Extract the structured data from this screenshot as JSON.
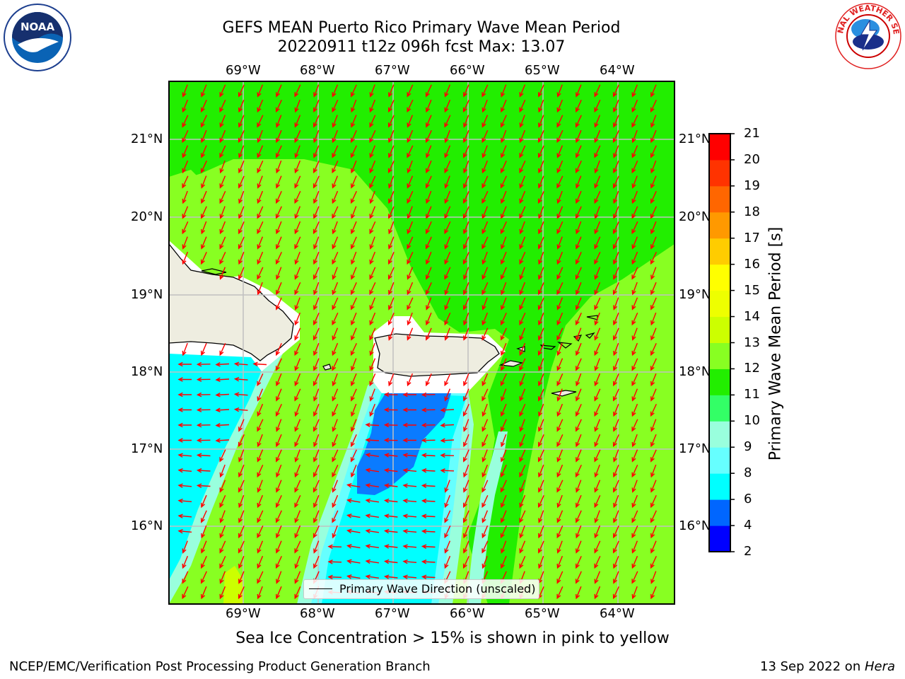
{
  "title": {
    "line1": "GEFS MEAN Puerto Rico Primary Wave Mean Period",
    "line2": "20220911 t12z 096h fcst   Max: 13.07"
  },
  "axes": {
    "longitude_labels": [
      "69°W",
      "68°W",
      "67°W",
      "66°W",
      "65°W",
      "64°W"
    ],
    "latitude_labels": [
      "21°N",
      "20°N",
      "19°N",
      "18°N",
      "17°N",
      "16°N"
    ]
  },
  "legend": {
    "label": "Primary Wave Direction (unscaled)"
  },
  "colorbar": {
    "label": "Primary Wave Mean Period [s]",
    "ticks": [
      "2",
      "4",
      "6",
      "8",
      "9",
      "10",
      "11",
      "12",
      "13",
      "14",
      "15",
      "16",
      "17",
      "18",
      "19",
      "20",
      "21"
    ],
    "colors": [
      "#0000ff",
      "#0066ff",
      "#00ffff",
      "#66ffff",
      "#99ffdd",
      "#33ff66",
      "#22ee00",
      "#88ff22",
      "#ccff00",
      "#eeff00",
      "#ffff00",
      "#ffcc00",
      "#ff9900",
      "#ff6600",
      "#ff3300",
      "#ff0000"
    ]
  },
  "caption": "Sea Ice Concentration > 15% is shown in pink to yellow",
  "footer": {
    "left": "NCEP/EMC/Verification Post Processing Product Generation Branch",
    "right_date": "13 Sep 2022 on ",
    "right_host": "Hera"
  },
  "logos": {
    "noaa_text": "NOAA",
    "nws_text": "NATIONAL WEATHER SERVICE"
  },
  "colors": {
    "land": "#eeede0",
    "arrow": "#ff0000",
    "grid": "#c0c0c0"
  }
}
